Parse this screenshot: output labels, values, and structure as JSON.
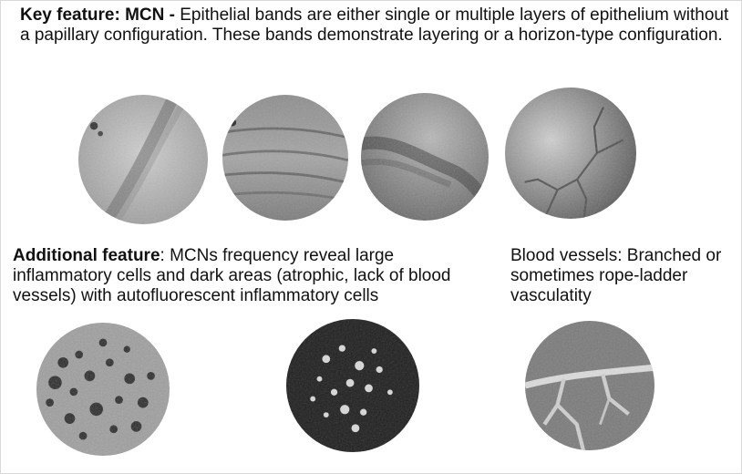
{
  "key_feature": {
    "label": "Key feature: MCN -",
    "text": " Epithelial bands are either single or multiple layers of epithelium without a papillary configuration. These bands demonstrate layering or a horizon-type configuration."
  },
  "additional_feature": {
    "label": "Additional feature",
    "text": ": MCNs frequency reveal large inflammatory cells and dark areas (atrophic, lack of blood vessels) with autofluorescent inflammatory cells"
  },
  "blood_vessels": {
    "text": "Blood vessels: Branched or sometimes rope-ladder vasculatity"
  },
  "images": [
    {
      "name": "epithelial-band-image-1",
      "icon": "micrograph-icon"
    },
    {
      "name": "epithelial-band-image-2",
      "icon": "micrograph-icon"
    },
    {
      "name": "epithelial-band-image-3",
      "icon": "micrograph-icon"
    },
    {
      "name": "epithelial-band-image-4",
      "icon": "micrograph-icon"
    },
    {
      "name": "inflammatory-dark-image",
      "icon": "micrograph-icon"
    },
    {
      "name": "autofluorescent-cells-image",
      "icon": "micrograph-icon"
    },
    {
      "name": "branched-vessels-image",
      "icon": "micrograph-icon"
    }
  ]
}
